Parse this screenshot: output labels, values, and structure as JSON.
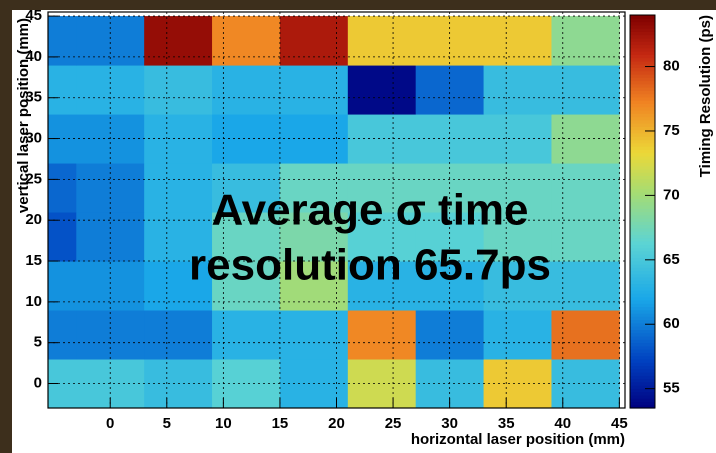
{
  "chart_data": {
    "type": "heatmap",
    "x_label": "horizontal laser position (mm)",
    "y_label": "vertical laser position (mm)",
    "colorbar_label": "Timing Resolution (ps)",
    "annotation": [
      "Average σ time",
      "resolution 65.7ps"
    ],
    "x": [
      -6,
      0,
      6,
      12,
      18,
      24,
      30,
      36,
      42
    ],
    "y": [
      0,
      6,
      12,
      18,
      24,
      30,
      36,
      42
    ],
    "z": [
      [
        65,
        65,
        64,
        66,
        63,
        72,
        64,
        74,
        64
      ],
      [
        60,
        60,
        60,
        63,
        63,
        77,
        60,
        63,
        78
      ],
      [
        61,
        61,
        62,
        67,
        70,
        63,
        63,
        64,
        64
      ],
      [
        58,
        60,
        63,
        67,
        68,
        66,
        66,
        67,
        67
      ],
      [
        59,
        60,
        63,
        64,
        67,
        67,
        67,
        67,
        67
      ],
      [
        61,
        61,
        63,
        62,
        62,
        65,
        65,
        65,
        69
      ],
      [
        63,
        63,
        64,
        63,
        63,
        54,
        59,
        64,
        64
      ],
      [
        60,
        60,
        83,
        77,
        82,
        74,
        74,
        74,
        69
      ]
    ],
    "xlim": [
      -5.5,
      45.5
    ],
    "xticks": [
      0,
      5,
      10,
      15,
      20,
      25,
      30,
      35,
      40,
      45
    ],
    "ylim": [
      -3,
      45.5
    ],
    "yticks": [
      0,
      5,
      10,
      15,
      20,
      25,
      30,
      35,
      40,
      45
    ],
    "zlim": [
      53.5,
      84
    ],
    "zticks": [
      55,
      60,
      65,
      70,
      75,
      80
    ],
    "grid": true
  }
}
